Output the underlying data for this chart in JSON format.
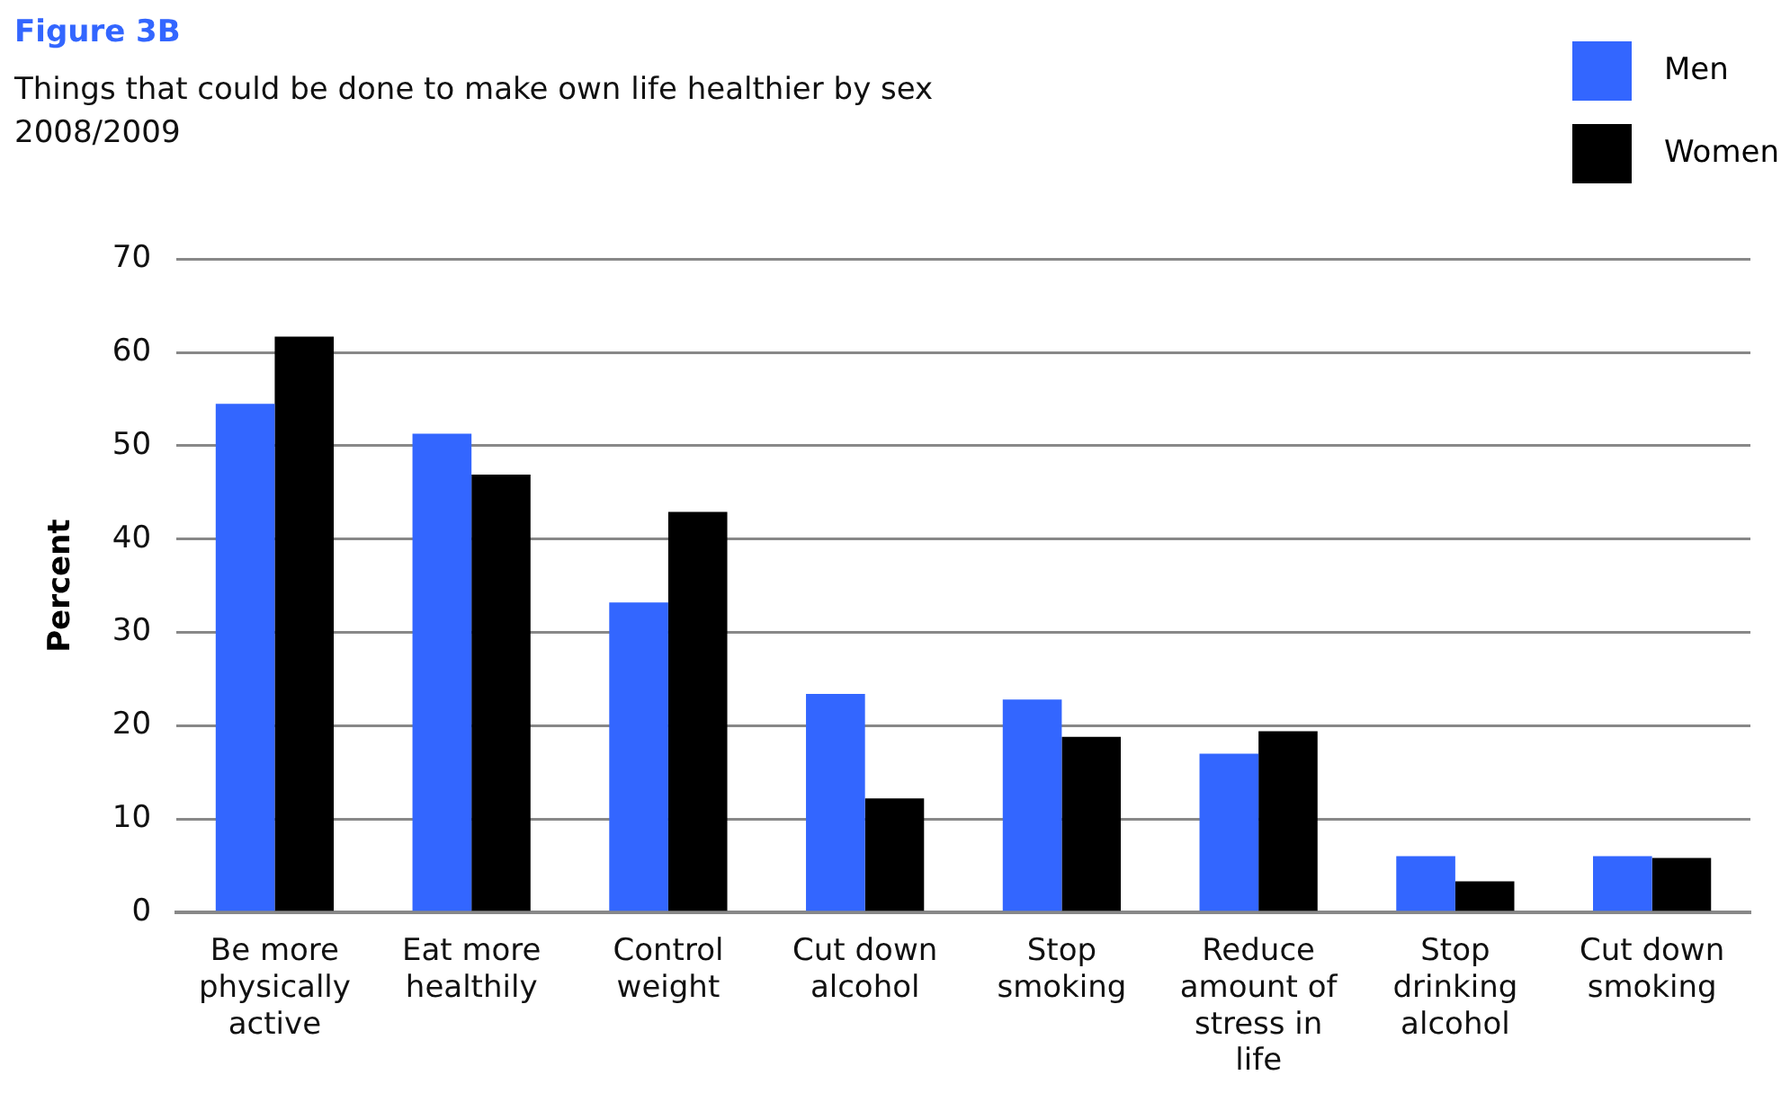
{
  "chart_data": {
    "type": "bar",
    "title": "Figure 3B",
    "subtitle": "Things that could be done to make own life healthier by sex\n2008/2009",
    "ylabel": "Percent",
    "categories": [
      "Be more physically active",
      "Eat more healthily",
      "Control weight",
      "Cut down alcohol",
      "Stop smoking",
      "Reduce amount of stress in life",
      "Stop drinking alcohol",
      "Cut down smoking"
    ],
    "series": [
      {
        "name": "Men",
        "color": "#3366ff",
        "values": [
          54.5,
          51.3,
          33.2,
          23.4,
          22.8,
          17.0,
          6.0,
          6.0
        ]
      },
      {
        "name": "Women",
        "color": "#000000",
        "values": [
          61.7,
          46.9,
          42.9,
          12.2,
          18.8,
          19.4,
          3.3,
          5.8
        ]
      }
    ],
    "ylim": [
      0,
      70
    ],
    "yticks": [
      0,
      10,
      20,
      30,
      40,
      50,
      60,
      70
    ],
    "grid": "y",
    "legend": "top right"
  }
}
